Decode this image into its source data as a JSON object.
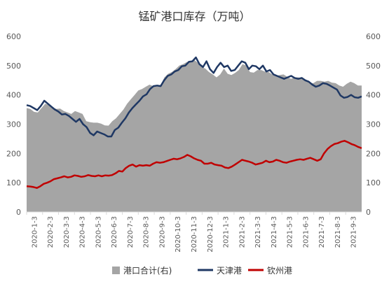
{
  "chart_data": {
    "type": "area",
    "title": "锰矿港口库存（万吨）",
    "y_left": {
      "min": 0,
      "max": 600,
      "ticks": [
        "0",
        "100",
        "200",
        "300",
        "400",
        "500",
        "600"
      ]
    },
    "y_right": {
      "min": 0,
      "max": 600,
      "ticks": [
        "0",
        "100",
        "200",
        "300",
        "400",
        "500",
        "600"
      ]
    },
    "x_tick_labels": [
      "2020-1-3",
      "2020-2-3",
      "2020-3-3",
      "2020-4-3",
      "2020-5-3",
      "2020-6-3",
      "2020-7-3",
      "2020-8-3",
      "2020-9-3",
      "2020-10-3",
      "2020-11-3",
      "2020-12-3",
      "2021-1-3",
      "2021-2-3",
      "2021-3-3",
      "2021-4-3",
      "2021-5-3",
      "2021-6-3",
      "2021-7-3",
      "2021-8-3",
      "2021-9-3"
    ],
    "legend_position": "bottom",
    "grid": false,
    "series": [
      {
        "name": "港口合计(右)",
        "kind": "area",
        "axis": "right",
        "color": "#a5a5a5",
        "values": [
          355,
          352,
          342,
          340,
          355,
          370,
          365,
          357,
          352,
          353,
          345,
          340,
          335,
          345,
          340,
          335,
          310,
          307,
          305,
          305,
          302,
          296,
          295,
          310,
          320,
          335,
          350,
          370,
          385,
          400,
          415,
          420,
          428,
          435,
          430,
          430,
          432,
          460,
          472,
          478,
          488,
          500,
          505,
          512,
          515,
          520,
          510,
          495,
          490,
          478,
          470,
          460,
          470,
          490,
          472,
          468,
          475,
          485,
          505,
          500,
          478,
          476,
          485,
          485,
          480,
          478,
          470,
          465,
          468,
          470,
          462,
          455,
          460,
          460,
          455,
          450,
          440,
          440,
          448,
          448,
          445,
          448,
          442,
          440,
          432,
          428,
          438,
          445,
          440,
          432,
          432
        ]
      },
      {
        "name": "天津港",
        "kind": "line",
        "axis": "left",
        "color": "#1f3864",
        "values": [
          365,
          362,
          355,
          348,
          362,
          380,
          370,
          360,
          350,
          343,
          333,
          335,
          328,
          318,
          308,
          318,
          300,
          290,
          270,
          262,
          275,
          270,
          265,
          258,
          258,
          280,
          288,
          305,
          320,
          340,
          355,
          368,
          380,
          395,
          402,
          420,
          430,
          432,
          430,
          450,
          465,
          470,
          480,
          485,
          498,
          500,
          513,
          515,
          528,
          505,
          495,
          515,
          488,
          475,
          495,
          510,
          495,
          500,
          482,
          485,
          500,
          515,
          510,
          488,
          500,
          498,
          488,
          500,
          480,
          485,
          470,
          465,
          460,
          455,
          460,
          465,
          458,
          455,
          458,
          450,
          445,
          435,
          428,
          432,
          440,
          438,
          432,
          425,
          418,
          398,
          390,
          393,
          400,
          392,
          390,
          395
        ]
      },
      {
        "name": "钦州港",
        "kind": "line",
        "axis": "left",
        "color": "#c00000",
        "values": [
          88,
          87,
          85,
          82,
          88,
          96,
          100,
          105,
          112,
          115,
          118,
          122,
          118,
          120,
          125,
          123,
          120,
          122,
          126,
          123,
          122,
          125,
          122,
          125,
          124,
          126,
          132,
          140,
          138,
          150,
          158,
          162,
          155,
          160,
          158,
          160,
          158,
          165,
          170,
          168,
          170,
          174,
          178,
          182,
          180,
          183,
          188,
          195,
          190,
          183,
          178,
          175,
          165,
          165,
          168,
          162,
          160,
          158,
          152,
          150,
          155,
          162,
          170,
          178,
          175,
          172,
          168,
          162,
          165,
          168,
          175,
          170,
          172,
          178,
          175,
          170,
          168,
          172,
          175,
          178,
          180,
          178,
          182,
          185,
          180,
          175,
          180,
          200,
          215,
          225,
          232,
          235,
          240,
          243,
          238,
          232,
          228,
          222,
          218
        ]
      }
    ]
  }
}
